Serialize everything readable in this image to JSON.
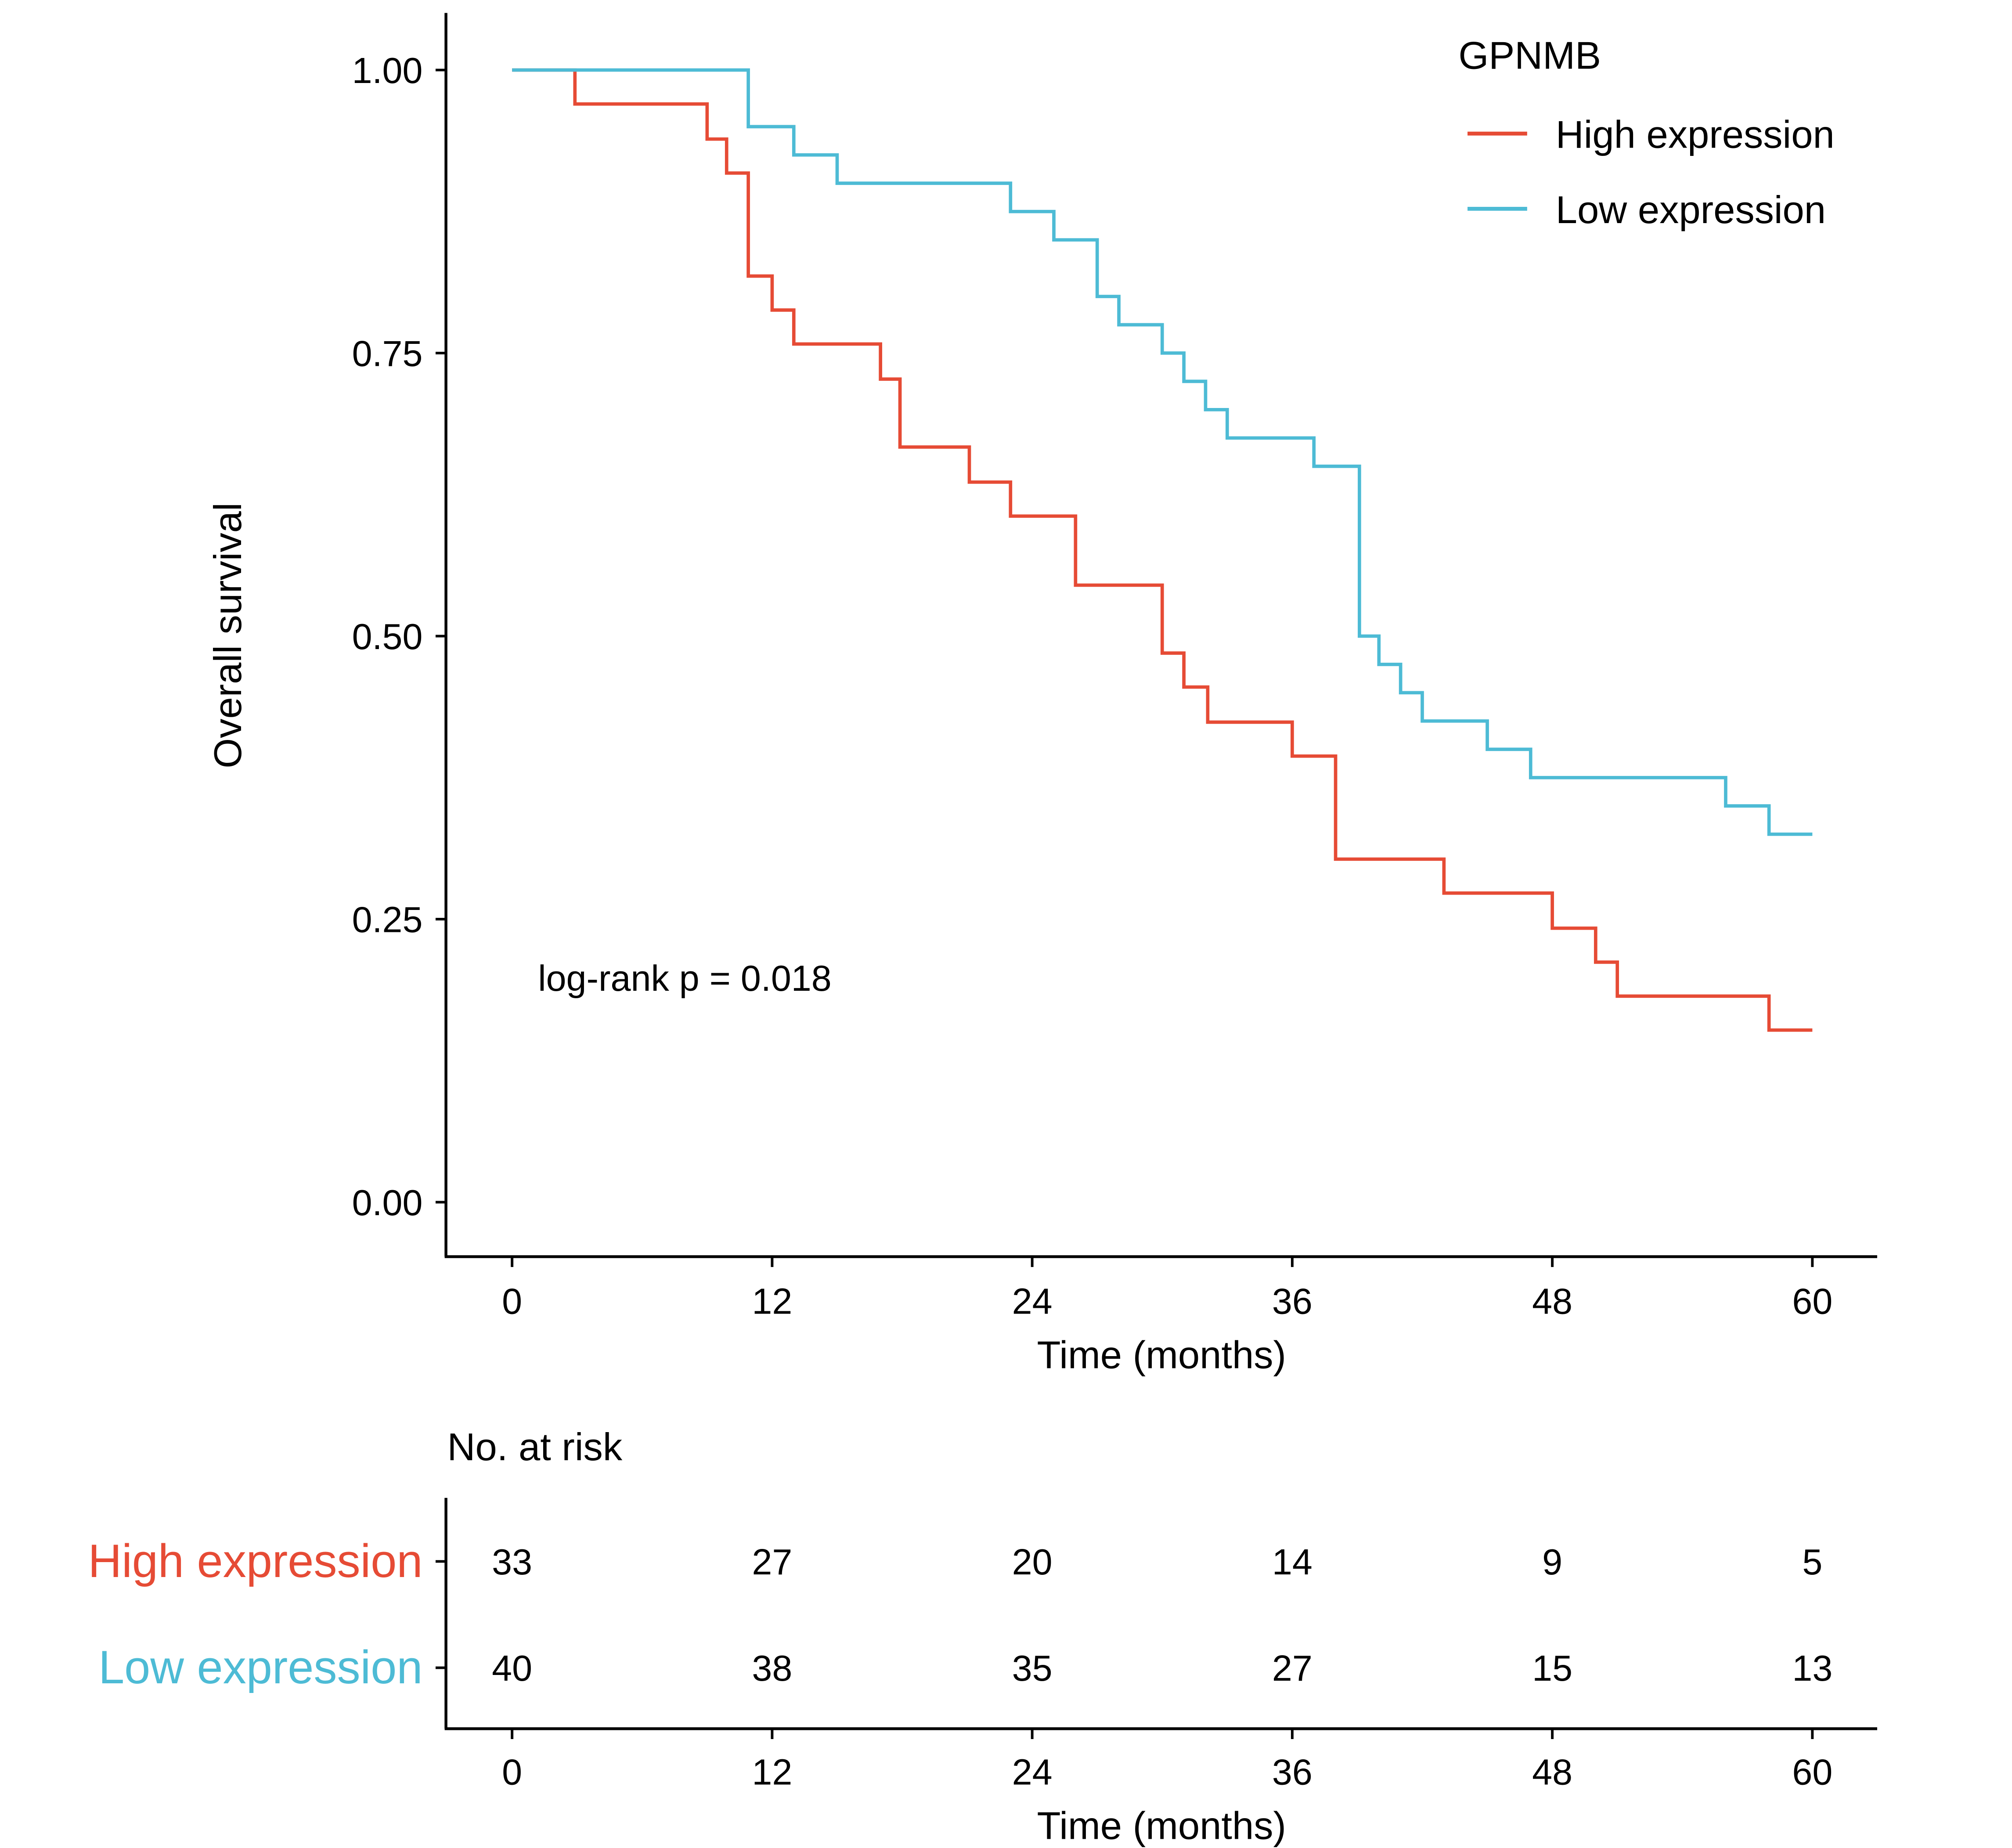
{
  "chart_data": [
    {
      "type": "line",
      "subtype": "kaplan-meier-step",
      "title": "",
      "xlabel": "Time (months)",
      "ylabel": "Overall survival",
      "xlim": [
        0,
        60
      ],
      "ylim": [
        0,
        1
      ],
      "x_ticks": [
        0,
        12,
        24,
        36,
        48,
        60
      ],
      "x_tick_labels": [
        "0",
        "12",
        "24",
        "36",
        "48",
        "60"
      ],
      "y_ticks": [
        0,
        0.25,
        0.5,
        0.75,
        1.0
      ],
      "y_tick_labels": [
        "0.00",
        "0.25",
        "0.50",
        "0.75",
        "1.00"
      ],
      "grid": false,
      "legend": {
        "title": "GPNMB",
        "placement": "top-right",
        "entries": [
          "High expression",
          "Low expression"
        ]
      },
      "annotation": "log-rank p = 0.018",
      "series": [
        {
          "name": "High expression",
          "color": "#E64B35",
          "times": [
            0,
            2.9,
            9.0,
            9.9,
            10.9,
            12.0,
            13.0,
            17.0,
            17.9,
            21.1,
            23.0,
            26.0,
            30.0,
            31.0,
            32.1,
            36.0,
            38.0,
            43.0,
            48.0,
            50.0,
            51.0,
            58.0,
            60.0
          ],
          "survival": [
            1.0,
            0.97,
            0.939,
            0.909,
            0.818,
            0.788,
            0.758,
            0.727,
            0.667,
            0.636,
            0.606,
            0.545,
            0.485,
            0.455,
            0.424,
            0.394,
            0.303,
            0.273,
            0.242,
            0.212,
            0.182,
            0.152,
            0.152
          ]
        },
        {
          "name": "Low expression",
          "color": "#4DBBD5",
          "times": [
            0,
            10.9,
            13.0,
            15.0,
            23.0,
            25.0,
            27.0,
            28.0,
            30.0,
            31.0,
            32.0,
            33.0,
            37.0,
            39.1,
            40.0,
            41.0,
            42.0,
            45.0,
            47.0,
            56.0,
            58.0,
            60.0
          ],
          "survival": [
            1.0,
            0.95,
            0.925,
            0.9,
            0.875,
            0.85,
            0.8,
            0.775,
            0.75,
            0.725,
            0.7,
            0.675,
            0.65,
            0.5,
            0.475,
            0.45,
            0.425,
            0.4,
            0.375,
            0.35,
            0.325,
            0.325
          ]
        }
      ]
    },
    {
      "type": "table",
      "title": "No. at risk",
      "xlabel": "Time (months)",
      "x_ticks": [
        0,
        12,
        24,
        36,
        48,
        60
      ],
      "x_tick_labels": [
        "0",
        "12",
        "24",
        "36",
        "48",
        "60"
      ],
      "rows": [
        {
          "name": "High expression",
          "color": "#E64B35",
          "values": [
            "33",
            "27",
            "20",
            "14",
            "9",
            "5"
          ]
        },
        {
          "name": "Low expression",
          "color": "#4DBBD5",
          "values": [
            "40",
            "38",
            "35",
            "27",
            "15",
            "13"
          ]
        }
      ]
    }
  ]
}
